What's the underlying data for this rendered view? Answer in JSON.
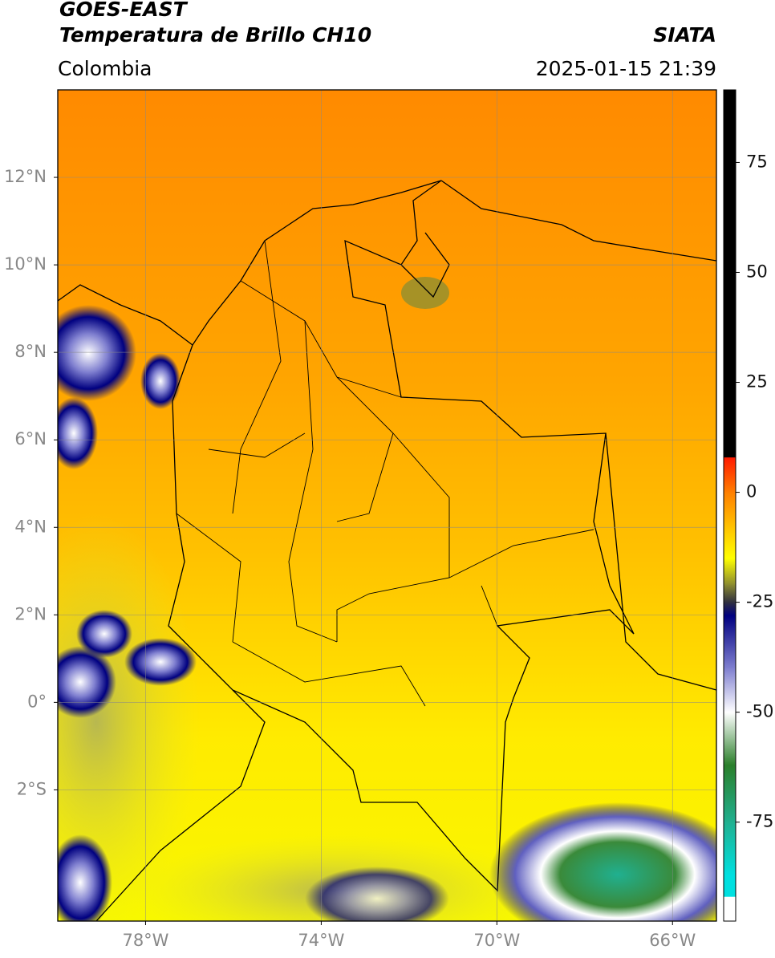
{
  "header": {
    "title": "GOES-EAST",
    "subtitle": "Temperatura de Brillo CH10",
    "source": "SIATA",
    "region": "Colombia",
    "datetime": "2025-01-15 21:39"
  },
  "map": {
    "xlim": [
      -80,
      -65
    ],
    "ylim": [
      -5,
      14
    ],
    "xticks": [
      {
        "value": -78,
        "label": "78°W"
      },
      {
        "value": -74,
        "label": "74°W"
      },
      {
        "value": -70,
        "label": "70°W"
      },
      {
        "value": -66,
        "label": "66°W"
      }
    ],
    "yticks": [
      {
        "value": 12,
        "label": "12°N"
      },
      {
        "value": 10,
        "label": "10°N"
      },
      {
        "value": 8,
        "label": "8°N"
      },
      {
        "value": 6,
        "label": "6°N"
      },
      {
        "value": 4,
        "label": "4°N"
      },
      {
        "value": 2,
        "label": "2°N"
      },
      {
        "value": 0,
        "label": "0°"
      },
      {
        "value": -2,
        "label": "2°S"
      }
    ],
    "grid": true
  },
  "colorbar": {
    "lim": [
      -97.5,
      91.5
    ],
    "ticks": [
      75,
      50,
      25,
      0,
      -25,
      -50,
      -75
    ],
    "stops": [
      {
        "value": 91.5,
        "color": "#000000"
      },
      {
        "value": 8,
        "color": "#000000"
      },
      {
        "value": 7.9,
        "color": "#ff1a00"
      },
      {
        "value": 0,
        "color": "#ff7f00"
      },
      {
        "value": -15,
        "color": "#ffff00"
      },
      {
        "value": -21,
        "color": "#8a8a30"
      },
      {
        "value": -25,
        "color": "#303040"
      },
      {
        "value": -28,
        "color": "#000080"
      },
      {
        "value": -40,
        "color": "#8080d0"
      },
      {
        "value": -50,
        "color": "#ffffff"
      },
      {
        "value": -62,
        "color": "#2a7f2a"
      },
      {
        "value": -75,
        "color": "#20b090"
      },
      {
        "value": -87,
        "color": "#00e0e0"
      },
      {
        "value": -91.9,
        "color": "#00e0e0"
      },
      {
        "value": -92,
        "color": "#ffffff"
      },
      {
        "value": -97.5,
        "color": "#ffffff"
      }
    ]
  }
}
